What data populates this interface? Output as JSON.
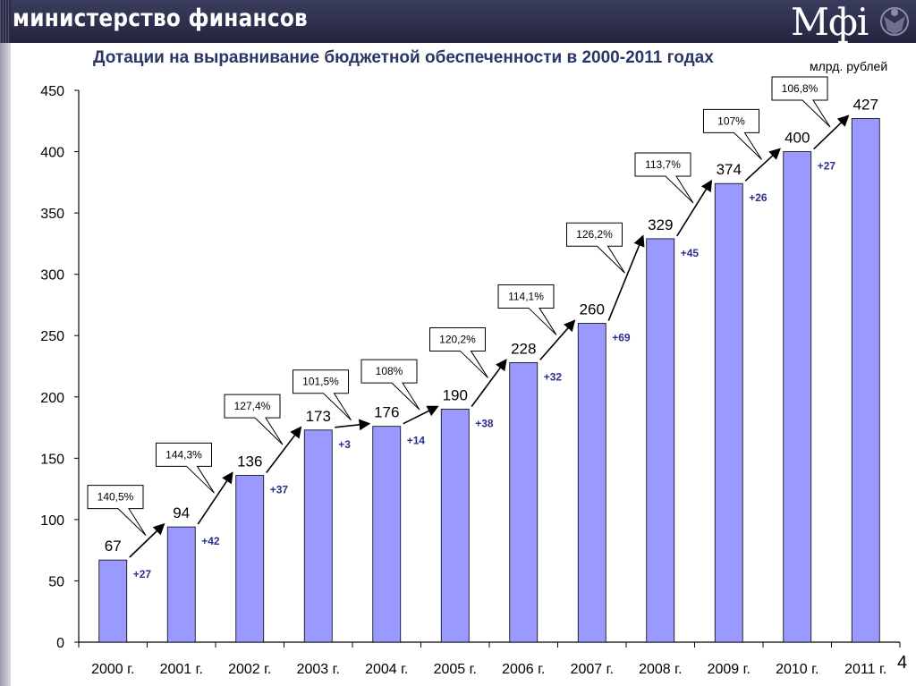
{
  "header": {
    "title": "министерство финансов",
    "logo_text": "Мфі",
    "page_number": "4"
  },
  "chart_data": {
    "type": "bar",
    "title": "Дотации на выравнивание бюджетной обеспеченности в 2000-2011 годах",
    "unit": "млрд. рублей",
    "xlabel": "",
    "ylabel": "",
    "ylim": [
      0,
      450
    ],
    "yticks": [
      0,
      50,
      100,
      150,
      200,
      250,
      300,
      350,
      400,
      450
    ],
    "categories": [
      "2000 г.",
      "2001 г.",
      "2002 г.",
      "2003 г.",
      "2004 г.",
      "2005 г.",
      "2006 г.",
      "2007 г.",
      "2008 г.",
      "2009 г.",
      "2010 г.",
      "2011 г."
    ],
    "values": [
      67,
      94,
      136,
      173,
      176,
      190,
      228,
      260,
      329,
      374,
      400,
      427
    ],
    "increments": [
      "+27",
      "+42",
      "+37",
      "+3",
      "+14",
      "+38",
      "+32",
      "+69",
      "+45",
      "+26",
      "+27"
    ],
    "growth_pct": [
      "140,5%",
      "144,3%",
      "127,4%",
      "101,5%",
      "108%",
      "120,2%",
      "114,1%",
      "126,2%",
      "113,7%",
      "107%",
      "106,8%"
    ],
    "grid": false,
    "legend": "none",
    "colors": {
      "bar": "#9999ff",
      "bar_stroke": "#000000",
      "increment": "#2d2f8f",
      "title": "#2b3566"
    }
  }
}
